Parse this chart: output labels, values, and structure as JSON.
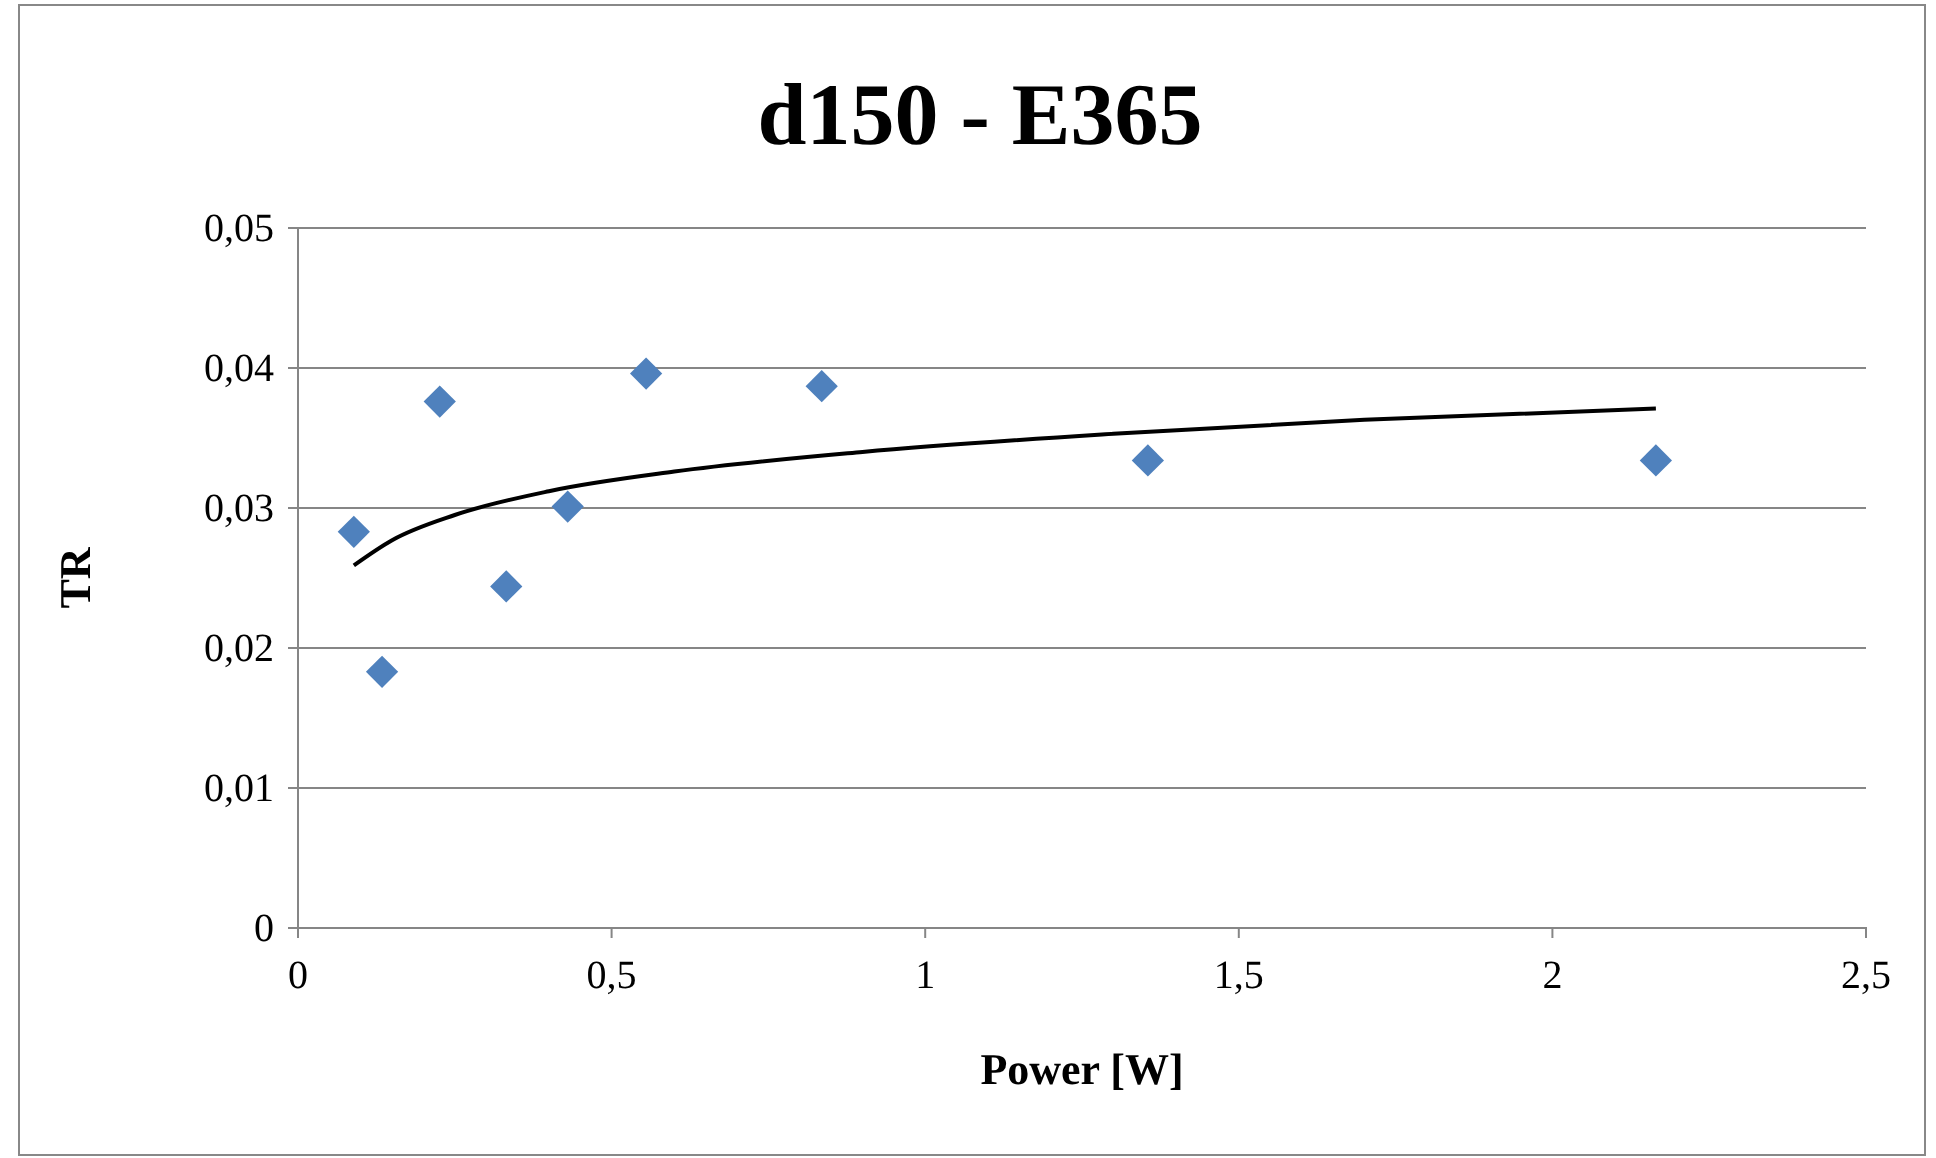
{
  "chart_data": {
    "type": "scatter",
    "title": "d150 - E365",
    "xlabel": "Power [W]",
    "ylabel": "TR",
    "xlim": [
      0,
      2.5
    ],
    "xticks": [
      0,
      {
        "value": 0.5,
        "label": "0,5"
      },
      1,
      {
        "value": 1.5,
        "label": "1,5"
      },
      2,
      {
        "value": 2.5,
        "label": "2,5"
      }
    ],
    "ylim": [
      0,
      0.05
    ],
    "yticks": [
      0,
      {
        "value": 0.01,
        "label": "0,01"
      },
      {
        "value": 0.02,
        "label": "0,02"
      },
      {
        "value": 0.03,
        "label": "0,03"
      },
      {
        "value": 0.04,
        "label": "0,04"
      },
      {
        "value": 0.05,
        "label": "0,05"
      }
    ],
    "grid": "y",
    "series": [
      {
        "marker": "diamond",
        "color": "#4f81bd",
        "x": [
          0.089,
          0.134,
          0.226,
          0.332,
          0.43,
          0.555,
          0.835,
          1.355,
          2.165
        ],
        "values": [
          0.0283,
          0.0183,
          0.0376,
          0.0244,
          0.0301,
          0.0396,
          0.0387,
          0.0334,
          0.0334
        ]
      },
      {
        "type": "line",
        "marker": "none",
        "color": "#000000",
        "x": [
          0.089,
          0.15,
          0.25,
          0.4,
          0.6,
          0.9,
          1.3,
          1.7,
          2.165
        ],
        "values": [
          0.0259,
          0.0277,
          0.0295,
          0.0312,
          0.0326,
          0.034,
          0.0353,
          0.0363,
          0.0371
        ]
      }
    ]
  }
}
